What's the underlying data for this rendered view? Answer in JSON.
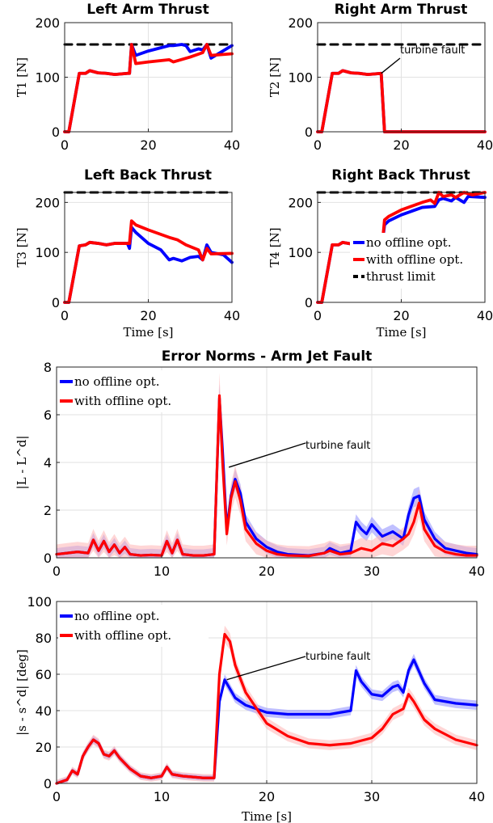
{
  "colors": {
    "no_offline": "#0000ff",
    "with_offline": "#ff0000",
    "limit": "#000000",
    "band_blue": "#8c8cff",
    "band_red": "#ffb4b4",
    "grid": "#e2e2e2"
  },
  "chart_data": [
    {
      "id": "t1",
      "type": "line",
      "title": "Left Arm Thrust",
      "xlabel": "",
      "ylabel": "T1 [N]",
      "xlim": [
        0,
        40
      ],
      "ylim": [
        0,
        200
      ],
      "xticks": [
        0,
        20,
        40
      ],
      "yticks": [
        0,
        100,
        200
      ],
      "grid": true,
      "series": [
        {
          "name": "thrust limit",
          "color": "#000000",
          "dashed": true,
          "x": [
            0,
            40
          ],
          "y": [
            160,
            160
          ]
        },
        {
          "name": "no offline opt.",
          "color": "#0000ff",
          "x": [
            0,
            1,
            3.5,
            5,
            6,
            8,
            10,
            12,
            15,
            15.5,
            16,
            17,
            20,
            25,
            26,
            28,
            29,
            30,
            32,
            33,
            34,
            35,
            40
          ],
          "y": [
            0,
            0,
            107,
            107,
            112,
            108,
            107,
            105,
            107,
            107,
            160,
            140,
            148,
            158,
            158,
            160,
            158,
            147,
            152,
            150,
            160,
            135,
            158
          ]
        },
        {
          "name": "with offline opt.",
          "color": "#ff0000",
          "x": [
            0,
            1,
            3.5,
            5,
            6,
            8,
            10,
            12,
            15,
            15.5,
            16,
            17,
            20,
            25,
            26,
            30,
            33,
            34,
            35,
            40
          ],
          "y": [
            0,
            0,
            107,
            107,
            112,
            108,
            107,
            105,
            107,
            107,
            160,
            125,
            128,
            132,
            128,
            137,
            145,
            160,
            140,
            143
          ]
        }
      ]
    },
    {
      "id": "t2",
      "type": "line",
      "title": "Right Arm Thrust",
      "xlabel": "",
      "ylabel": "T2 [N]",
      "xlim": [
        0,
        40
      ],
      "ylim": [
        0,
        200
      ],
      "xticks": [
        0,
        20,
        40
      ],
      "yticks": [
        0,
        100,
        200
      ],
      "grid": true,
      "annotation": "turbine fault",
      "annotation_at": [
        15.2,
        107
      ],
      "series": [
        {
          "name": "thrust limit",
          "color": "#000000",
          "dashed": true,
          "x": [
            0,
            40
          ],
          "y": [
            160,
            160
          ]
        },
        {
          "name": "no offline opt.",
          "color": "#0000ff",
          "x": [
            0,
            1,
            3.5,
            5,
            6,
            8,
            10,
            12,
            15.2,
            16,
            40
          ],
          "y": [
            0,
            0,
            107,
            107,
            112,
            108,
            107,
            105,
            107,
            0,
            0
          ]
        },
        {
          "name": "with offline opt.",
          "color": "#ff0000",
          "x": [
            0,
            1,
            3.5,
            5,
            6,
            8,
            10,
            12,
            15.2,
            16,
            40
          ],
          "y": [
            0,
            0,
            107,
            107,
            112,
            108,
            107,
            105,
            107,
            0,
            0
          ]
        }
      ]
    },
    {
      "id": "t3",
      "type": "line",
      "title": "Left Back Thrust",
      "xlabel": "Time [s]",
      "ylabel": "T3 [N]",
      "xlim": [
        0,
        40
      ],
      "ylim": [
        0,
        220
      ],
      "xticks": [
        0,
        20,
        40
      ],
      "yticks": [
        0,
        100,
        200
      ],
      "grid": true,
      "series": [
        {
          "name": "thrust limit",
          "color": "#000000",
          "dashed": true,
          "x": [
            0,
            40
          ],
          "y": [
            220,
            220
          ]
        },
        {
          "name": "no offline opt.",
          "color": "#0000ff",
          "x": [
            0,
            1,
            3.5,
            5,
            6,
            8,
            10,
            12,
            15,
            15.5,
            16,
            17,
            20,
            23,
            25,
            26,
            28,
            30,
            32,
            33,
            34,
            35,
            38,
            40
          ],
          "y": [
            0,
            0,
            113,
            115,
            120,
            118,
            115,
            118,
            118,
            108,
            150,
            140,
            118,
            105,
            85,
            88,
            83,
            90,
            92,
            85,
            115,
            100,
            95,
            80
          ]
        },
        {
          "name": "with offline opt.",
          "color": "#ff0000",
          "x": [
            0,
            1,
            3.5,
            5,
            6,
            8,
            10,
            12,
            15,
            15.5,
            16,
            17,
            20,
            25,
            27,
            29,
            32,
            33,
            34,
            35,
            40
          ],
          "y": [
            0,
            0,
            113,
            115,
            120,
            118,
            115,
            118,
            118,
            118,
            163,
            155,
            145,
            130,
            125,
            115,
            105,
            85,
            108,
            97,
            98
          ]
        }
      ]
    },
    {
      "id": "t4",
      "type": "line",
      "title": "Right Back Thrust",
      "xlabel": "Time [s]",
      "ylabel": "T4 [N]",
      "xlim": [
        0,
        40
      ],
      "ylim": [
        0,
        220
      ],
      "xticks": [
        0,
        20,
        40
      ],
      "yticks": [
        0,
        100,
        200
      ],
      "grid": true,
      "legend": {
        "position": "bottom-right",
        "entries": [
          "no offline opt.",
          "with offline opt.",
          "thrust limit"
        ]
      },
      "series": [
        {
          "name": "thrust limit",
          "color": "#000000",
          "dashed": true,
          "x": [
            0,
            40
          ],
          "y": [
            220,
            220
          ]
        },
        {
          "name": "no offline opt.",
          "color": "#0000ff",
          "x": [
            0,
            1,
            3.5,
            5,
            6,
            8,
            10,
            12,
            15,
            15.5,
            16,
            17,
            20,
            25,
            28,
            29,
            30,
            32,
            33,
            35,
            36,
            40
          ],
          "y": [
            0,
            0,
            115,
            115,
            120,
            117,
            115,
            118,
            120,
            120,
            155,
            163,
            175,
            190,
            192,
            205,
            208,
            203,
            210,
            200,
            212,
            210
          ]
        },
        {
          "name": "with offline opt.",
          "color": "#ff0000",
          "x": [
            0,
            1,
            3.5,
            5,
            6,
            8,
            10,
            12,
            15,
            15.5,
            16,
            17,
            20,
            25,
            27,
            28,
            29,
            30,
            32,
            33,
            35,
            37,
            40
          ],
          "y": [
            0,
            0,
            115,
            115,
            120,
            117,
            115,
            118,
            120,
            120,
            165,
            172,
            185,
            200,
            205,
            198,
            220,
            212,
            215,
            210,
            220,
            215,
            220
          ]
        }
      ]
    },
    {
      "id": "e1",
      "type": "line",
      "title": "Error Norms - Arm Jet Fault",
      "xlabel": "",
      "ylabel": "|L - L^d|",
      "xlim": [
        0,
        40
      ],
      "ylim": [
        0,
        8
      ],
      "xticks": [
        0,
        10,
        20,
        30,
        40
      ],
      "yticks": [
        0,
        2,
        4,
        6,
        8
      ],
      "grid": true,
      "annotation": "turbine fault",
      "annotation_at": [
        16.4,
        3.8
      ],
      "legend": {
        "position": "top-left",
        "entries": [
          "no offline opt.",
          "with offline opt."
        ]
      },
      "series": [
        {
          "name": "no offline opt.",
          "color": "#0000ff",
          "band": 0.25,
          "x": [
            0,
            1,
            2,
            3,
            3.5,
            4,
            4.5,
            5,
            5.5,
            6,
            6.5,
            7,
            8,
            9,
            10,
            10.5,
            11,
            11.5,
            12,
            13,
            14,
            15,
            15.5,
            15.8,
            16.2,
            16.6,
            17,
            17.5,
            18,
            19,
            20,
            21,
            22,
            24,
            25.5,
            26,
            27,
            28,
            28.5,
            29,
            29.5,
            30,
            31,
            32,
            33,
            33.5,
            34,
            34.5,
            35,
            36,
            37,
            38,
            39,
            40
          ],
          "y": [
            0.15,
            0.2,
            0.25,
            0.2,
            0.75,
            0.3,
            0.7,
            0.25,
            0.55,
            0.2,
            0.45,
            0.15,
            0.1,
            0.12,
            0.1,
            0.7,
            0.2,
            0.75,
            0.15,
            0.1,
            0.1,
            0.15,
            6.7,
            4.5,
            1.2,
            2.6,
            3.3,
            2.7,
            1.5,
            0.8,
            0.45,
            0.25,
            0.15,
            0.1,
            0.2,
            0.4,
            0.2,
            0.3,
            1.5,
            1.2,
            1.0,
            1.4,
            0.9,
            1.1,
            0.8,
            1.8,
            2.5,
            2.6,
            1.6,
            0.8,
            0.4,
            0.3,
            0.2,
            0.15
          ]
        },
        {
          "name": "with offline opt.",
          "color": "#ff0000",
          "band": 0.4,
          "x": [
            0,
            1,
            2,
            3,
            3.5,
            4,
            4.5,
            5,
            5.5,
            6,
            6.5,
            7,
            8,
            9,
            10,
            10.5,
            11,
            11.5,
            12,
            13,
            14,
            15,
            15.5,
            15.8,
            16.2,
            16.6,
            17,
            17.5,
            18,
            19,
            20,
            21,
            22,
            24,
            25.5,
            26,
            27,
            28,
            29,
            30,
            31,
            32,
            33,
            33.5,
            34,
            34.5,
            35,
            36,
            37,
            38,
            39,
            40
          ],
          "y": [
            0.15,
            0.2,
            0.25,
            0.2,
            0.75,
            0.3,
            0.7,
            0.25,
            0.55,
            0.2,
            0.45,
            0.15,
            0.1,
            0.12,
            0.1,
            0.7,
            0.2,
            0.75,
            0.15,
            0.1,
            0.1,
            0.15,
            6.8,
            4.0,
            1.0,
            2.5,
            3.2,
            2.4,
            1.2,
            0.6,
            0.3,
            0.15,
            0.1,
            0.08,
            0.2,
            0.3,
            0.15,
            0.2,
            0.4,
            0.3,
            0.6,
            0.5,
            0.8,
            1.0,
            1.5,
            2.3,
            1.2,
            0.5,
            0.25,
            0.15,
            0.1,
            0.1
          ]
        }
      ]
    },
    {
      "id": "e2",
      "type": "line",
      "title": "",
      "xlabel": "Time [s]",
      "ylabel": "|s - s^d| [deg]",
      "xlim": [
        0,
        40
      ],
      "ylim": [
        0,
        100
      ],
      "xticks": [
        0,
        10,
        20,
        30,
        40
      ],
      "yticks": [
        0,
        20,
        40,
        60,
        80,
        100
      ],
      "grid": true,
      "annotation": "turbine fault",
      "annotation_at": [
        16.2,
        57
      ],
      "legend": {
        "position": "top-left",
        "entries": [
          "no offline opt.",
          "with offline opt."
        ]
      },
      "series": [
        {
          "name": "no offline opt.",
          "color": "#0000ff",
          "band": 1.5,
          "x": [
            0,
            1,
            1.5,
            2,
            2.5,
            3,
            3.5,
            4,
            4.5,
            5,
            5.5,
            6,
            7,
            8,
            9,
            10,
            10.5,
            11,
            12,
            13,
            14,
            15,
            15.5,
            16,
            17,
            18,
            20,
            22,
            24,
            26,
            28,
            28.5,
            29,
            30,
            31,
            32,
            32.5,
            33,
            33.5,
            34,
            35,
            36,
            38,
            40
          ],
          "y": [
            0,
            2,
            7,
            5,
            15,
            20,
            24,
            22,
            16,
            15,
            18,
            14,
            8,
            4,
            3,
            4,
            9,
            5,
            4,
            3.5,
            3,
            3,
            45,
            57,
            47,
            43,
            39,
            38,
            38,
            38,
            40,
            62,
            56,
            49,
            48,
            53,
            54,
            50,
            62,
            68,
            55,
            46,
            44,
            43
          ]
        },
        {
          "name": "with offline opt.",
          "color": "#ff0000",
          "band": 2,
          "x": [
            0,
            1,
            1.5,
            2,
            2.5,
            3,
            3.5,
            4,
            4.5,
            5,
            5.5,
            6,
            7,
            8,
            9,
            10,
            10.5,
            11,
            12,
            13,
            14,
            15,
            15.5,
            16,
            16.5,
            17,
            18,
            20,
            22,
            24,
            26,
            28,
            30,
            31,
            32,
            33,
            33.5,
            34,
            35,
            36,
            38,
            40
          ],
          "y": [
            0,
            2,
            7,
            5,
            15,
            20,
            24,
            22,
            16,
            15,
            18,
            14,
            8,
            4,
            3,
            4,
            9,
            5,
            4,
            3.5,
            3,
            3,
            60,
            82,
            78,
            65,
            50,
            33,
            26,
            22,
            21,
            22,
            25,
            30,
            38,
            41,
            49,
            45,
            35,
            30,
            24,
            21
          ]
        }
      ]
    }
  ]
}
